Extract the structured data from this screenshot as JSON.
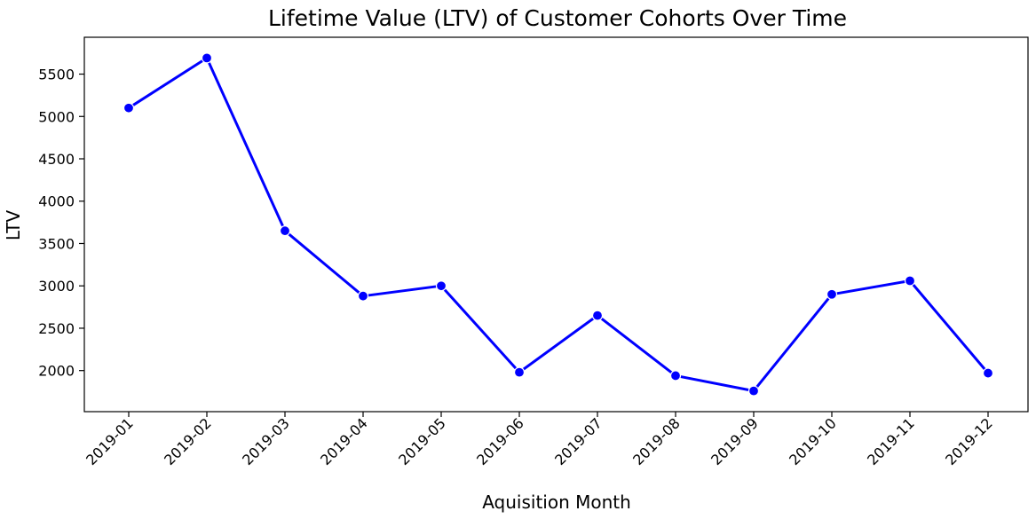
{
  "chart_data": {
    "type": "line",
    "title": "Lifetime Value (LTV) of Customer Cohorts Over Time",
    "xlabel": "Aquisition Month",
    "ylabel": "LTV",
    "categories": [
      "2019-01",
      "2019-02",
      "2019-03",
      "2019-04",
      "2019-05",
      "2019-06",
      "2019-07",
      "2019-08",
      "2019-09",
      "2019-10",
      "2019-11",
      "2019-12"
    ],
    "series": [
      {
        "values": [
          5100,
          5690,
          3650,
          2880,
          3000,
          1980,
          2650,
          1940,
          1760,
          2900,
          3060,
          1970
        ],
        "color": "#0000ff",
        "marker": "circle"
      }
    ],
    "yticks": [
      2000,
      2500,
      3000,
      3500,
      4000,
      4500,
      5000,
      5500
    ],
    "ylim": [
      1515,
      5935
    ],
    "x_tick_rotation": 45,
    "grid": false,
    "legend": "none"
  }
}
